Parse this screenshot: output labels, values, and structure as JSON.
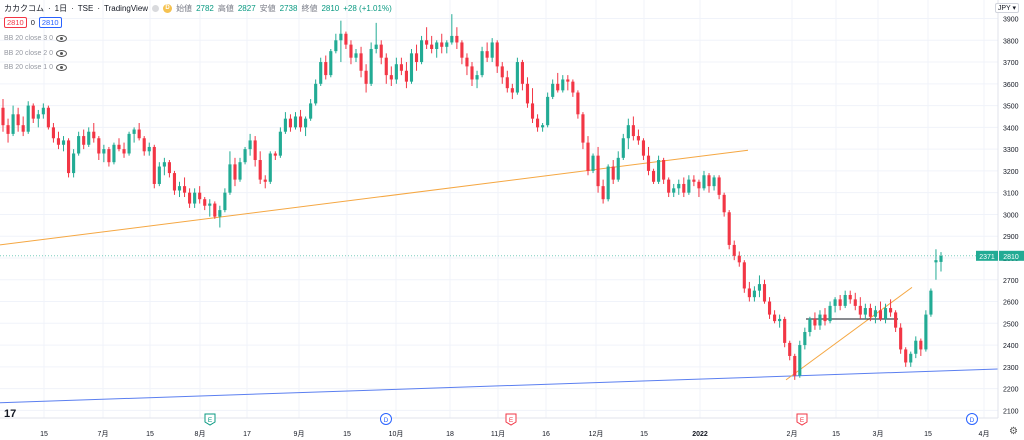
{
  "header": {
    "symbol": "カカクコム",
    "interval": "1日",
    "exchange": "TSE",
    "source": "TradingView",
    "open_label": "始値",
    "open": "2782",
    "high_label": "高値",
    "high": "2827",
    "low_label": "安値",
    "low": "2738",
    "close_label": "終値",
    "close": "2810",
    "change": "+28 (+1.01%)",
    "d_marker": "D"
  },
  "prices": {
    "sell": "2810",
    "spread": "0",
    "buy": "2810"
  },
  "indicators": [
    {
      "label": "BB 20 close 3 0"
    },
    {
      "label": "BB 20 close 2 0"
    },
    {
      "label": "BB 20 close 1 0"
    }
  ],
  "currency": "JPY ▾",
  "colors": {
    "up": "#22ab94",
    "down": "#f23645",
    "orange_trendline": "#f5a742",
    "blue_trendline": "#5b7ff0",
    "last_price_label": "#22ab94",
    "price_line": "#22ab94"
  },
  "chart_data": {
    "type": "candlestick",
    "y_ticks": [
      2100,
      2200,
      2300,
      2400,
      2500,
      2600,
      2700,
      2800,
      2900,
      3000,
      3100,
      3200,
      3300,
      3400,
      3500,
      3600,
      3700,
      3800,
      3900
    ],
    "ylim": [
      2065,
      3985
    ],
    "x_ticks": [
      "15",
      "7月",
      "15",
      "8月",
      "17",
      "9月",
      "15",
      "10月",
      "18",
      "11月",
      "16",
      "12月",
      "15",
      "2022",
      "2月",
      "15",
      "3月",
      "15",
      "4月"
    ],
    "last_price_labels": [
      "2371",
      "2810"
    ],
    "event_markers": [
      "E",
      "D",
      "E",
      "E",
      "D"
    ],
    "candles": [
      [
        3490,
        3530,
        3380,
        3410
      ],
      [
        3410,
        3440,
        3330,
        3370
      ],
      [
        3370,
        3500,
        3360,
        3460
      ],
      [
        3460,
        3490,
        3380,
        3410
      ],
      [
        3410,
        3450,
        3360,
        3380
      ],
      [
        3380,
        3520,
        3370,
        3500
      ],
      [
        3500,
        3510,
        3420,
        3440
      ],
      [
        3440,
        3480,
        3400,
        3460
      ],
      [
        3460,
        3510,
        3440,
        3490
      ],
      [
        3490,
        3500,
        3390,
        3400
      ],
      [
        3400,
        3420,
        3330,
        3350
      ],
      [
        3350,
        3380,
        3300,
        3320
      ],
      [
        3320,
        3360,
        3290,
        3340
      ],
      [
        3340,
        3350,
        3170,
        3190
      ],
      [
        3190,
        3300,
        3170,
        3280
      ],
      [
        3280,
        3380,
        3270,
        3360
      ],
      [
        3360,
        3390,
        3300,
        3320
      ],
      [
        3320,
        3400,
        3310,
        3380
      ],
      [
        3380,
        3420,
        3330,
        3350
      ],
      [
        3350,
        3360,
        3250,
        3280
      ],
      [
        3280,
        3320,
        3240,
        3300
      ],
      [
        3300,
        3310,
        3220,
        3240
      ],
      [
        3240,
        3330,
        3230,
        3320
      ],
      [
        3320,
        3350,
        3290,
        3300
      ],
      [
        3300,
        3330,
        3260,
        3280
      ],
      [
        3280,
        3380,
        3270,
        3370
      ],
      [
        3370,
        3400,
        3330,
        3390
      ],
      [
        3390,
        3420,
        3340,
        3350
      ],
      [
        3350,
        3360,
        3270,
        3290
      ],
      [
        3290,
        3330,
        3270,
        3310
      ],
      [
        3310,
        3320,
        3120,
        3140
      ],
      [
        3140,
        3240,
        3130,
        3220
      ],
      [
        3220,
        3260,
        3180,
        3240
      ],
      [
        3240,
        3250,
        3170,
        3190
      ],
      [
        3190,
        3200,
        3090,
        3110
      ],
      [
        3110,
        3150,
        3080,
        3130
      ],
      [
        3130,
        3170,
        3080,
        3100
      ],
      [
        3100,
        3120,
        3030,
        3050
      ],
      [
        3050,
        3120,
        3030,
        3100
      ],
      [
        3100,
        3130,
        3050,
        3070
      ],
      [
        3070,
        3080,
        3020,
        3040
      ],
      [
        3040,
        3070,
        2990,
        3050
      ],
      [
        3050,
        3060,
        2980,
        2990
      ],
      [
        2990,
        3040,
        2940,
        3020
      ],
      [
        3020,
        3120,
        3010,
        3100
      ],
      [
        3100,
        3290,
        3090,
        3230
      ],
      [
        3230,
        3260,
        3130,
        3160
      ],
      [
        3160,
        3260,
        3150,
        3240
      ],
      [
        3240,
        3310,
        3230,
        3300
      ],
      [
        3300,
        3370,
        3270,
        3340
      ],
      [
        3340,
        3360,
        3220,
        3250
      ],
      [
        3250,
        3290,
        3140,
        3160
      ],
      [
        3160,
        3180,
        3120,
        3150
      ],
      [
        3150,
        3290,
        3140,
        3280
      ],
      [
        3280,
        3290,
        3250,
        3270
      ],
      [
        3270,
        3400,
        3260,
        3380
      ],
      [
        3380,
        3470,
        3370,
        3440
      ],
      [
        3440,
        3460,
        3380,
        3400
      ],
      [
        3400,
        3470,
        3390,
        3450
      ],
      [
        3450,
        3480,
        3380,
        3400
      ],
      [
        3400,
        3450,
        3360,
        3440
      ],
      [
        3440,
        3530,
        3430,
        3510
      ],
      [
        3510,
        3620,
        3500,
        3600
      ],
      [
        3600,
        3720,
        3590,
        3700
      ],
      [
        3700,
        3730,
        3620,
        3640
      ],
      [
        3640,
        3760,
        3630,
        3750
      ],
      [
        3750,
        3830,
        3740,
        3800
      ],
      [
        3800,
        3890,
        3700,
        3830
      ],
      [
        3830,
        3840,
        3760,
        3780
      ],
      [
        3780,
        3800,
        3690,
        3720
      ],
      [
        3720,
        3760,
        3700,
        3740
      ],
      [
        3740,
        3770,
        3630,
        3660
      ],
      [
        3660,
        3690,
        3560,
        3600
      ],
      [
        3600,
        3790,
        3590,
        3760
      ],
      [
        3760,
        3880,
        3740,
        3780
      ],
      [
        3780,
        3800,
        3690,
        3720
      ],
      [
        3720,
        3740,
        3600,
        3640
      ],
      [
        3640,
        3680,
        3590,
        3620
      ],
      [
        3620,
        3720,
        3600,
        3690
      ],
      [
        3690,
        3720,
        3640,
        3660
      ],
      [
        3660,
        3700,
        3580,
        3610
      ],
      [
        3610,
        3760,
        3600,
        3740
      ],
      [
        3740,
        3780,
        3660,
        3700
      ],
      [
        3700,
        3820,
        3690,
        3800
      ],
      [
        3800,
        3860,
        3760,
        3780
      ],
      [
        3780,
        3820,
        3740,
        3760
      ],
      [
        3760,
        3800,
        3720,
        3790
      ],
      [
        3790,
        3830,
        3740,
        3770
      ],
      [
        3770,
        3800,
        3740,
        3790
      ],
      [
        3790,
        3920,
        3780,
        3820
      ],
      [
        3820,
        3860,
        3760,
        3790
      ],
      [
        3790,
        3800,
        3690,
        3720
      ],
      [
        3720,
        3740,
        3640,
        3680
      ],
      [
        3680,
        3700,
        3590,
        3620
      ],
      [
        3620,
        3660,
        3580,
        3640
      ],
      [
        3640,
        3770,
        3630,
        3750
      ],
      [
        3750,
        3790,
        3700,
        3720
      ],
      [
        3720,
        3810,
        3700,
        3790
      ],
      [
        3790,
        3800,
        3650,
        3680
      ],
      [
        3680,
        3700,
        3600,
        3630
      ],
      [
        3630,
        3660,
        3560,
        3580
      ],
      [
        3580,
        3600,
        3530,
        3560
      ],
      [
        3560,
        3720,
        3550,
        3700
      ],
      [
        3700,
        3710,
        3570,
        3600
      ],
      [
        3600,
        3630,
        3490,
        3510
      ],
      [
        3510,
        3580,
        3420,
        3440
      ],
      [
        3440,
        3460,
        3380,
        3400
      ],
      [
        3400,
        3420,
        3380,
        3410
      ],
      [
        3410,
        3560,
        3400,
        3540
      ],
      [
        3540,
        3620,
        3530,
        3600
      ],
      [
        3600,
        3650,
        3560,
        3570
      ],
      [
        3570,
        3640,
        3560,
        3620
      ],
      [
        3620,
        3640,
        3570,
        3610
      ],
      [
        3610,
        3620,
        3540,
        3560
      ],
      [
        3560,
        3570,
        3440,
        3460
      ],
      [
        3460,
        3470,
        3300,
        3330
      ],
      [
        3330,
        3360,
        3180,
        3200
      ],
      [
        3200,
        3280,
        3190,
        3270
      ],
      [
        3270,
        3310,
        3100,
        3130
      ],
      [
        3130,
        3160,
        3050,
        3070
      ],
      [
        3070,
        3230,
        3060,
        3220
      ],
      [
        3220,
        3250,
        3140,
        3160
      ],
      [
        3160,
        3290,
        3150,
        3260
      ],
      [
        3260,
        3370,
        3250,
        3350
      ],
      [
        3350,
        3440,
        3300,
        3410
      ],
      [
        3410,
        3450,
        3340,
        3360
      ],
      [
        3360,
        3390,
        3320,
        3340
      ],
      [
        3340,
        3350,
        3250,
        3270
      ],
      [
        3270,
        3310,
        3180,
        3200
      ],
      [
        3200,
        3210,
        3140,
        3150
      ],
      [
        3150,
        3270,
        3140,
        3250
      ],
      [
        3250,
        3260,
        3140,
        3160
      ],
      [
        3160,
        3170,
        3080,
        3100
      ],
      [
        3100,
        3140,
        3080,
        3120
      ],
      [
        3120,
        3160,
        3090,
        3140
      ],
      [
        3140,
        3170,
        3080,
        3100
      ],
      [
        3100,
        3180,
        3090,
        3160
      ],
      [
        3160,
        3180,
        3130,
        3150
      ],
      [
        3150,
        3160,
        3080,
        3120
      ],
      [
        3120,
        3200,
        3110,
        3180
      ],
      [
        3180,
        3190,
        3100,
        3130
      ],
      [
        3130,
        3180,
        3110,
        3170
      ],
      [
        3170,
        3180,
        3070,
        3090
      ],
      [
        3090,
        3100,
        2990,
        3010
      ],
      [
        3010,
        3020,
        2840,
        2860
      ],
      [
        2860,
        2880,
        2790,
        2810
      ],
      [
        2810,
        2830,
        2760,
        2780
      ],
      [
        2780,
        2790,
        2640,
        2660
      ],
      [
        2660,
        2690,
        2600,
        2620
      ],
      [
        2620,
        2670,
        2600,
        2650
      ],
      [
        2650,
        2720,
        2620,
        2680
      ],
      [
        2680,
        2700,
        2590,
        2600
      ],
      [
        2600,
        2620,
        2520,
        2540
      ],
      [
        2540,
        2560,
        2500,
        2510
      ],
      [
        2510,
        2540,
        2480,
        2520
      ],
      [
        2520,
        2530,
        2390,
        2410
      ],
      [
        2410,
        2420,
        2330,
        2350
      ],
      [
        2350,
        2360,
        2240,
        2260
      ],
      [
        2260,
        2420,
        2250,
        2400
      ],
      [
        2400,
        2480,
        2380,
        2460
      ],
      [
        2460,
        2530,
        2440,
        2520
      ],
      [
        2520,
        2550,
        2470,
        2490
      ],
      [
        2490,
        2560,
        2470,
        2540
      ],
      [
        2540,
        2570,
        2490,
        2510
      ],
      [
        2510,
        2600,
        2500,
        2580
      ],
      [
        2580,
        2620,
        2550,
        2610
      ],
      [
        2610,
        2630,
        2560,
        2580
      ],
      [
        2580,
        2650,
        2570,
        2630
      ],
      [
        2630,
        2650,
        2590,
        2610
      ],
      [
        2610,
        2640,
        2560,
        2580
      ],
      [
        2580,
        2620,
        2520,
        2540
      ],
      [
        2540,
        2590,
        2520,
        2570
      ],
      [
        2570,
        2590,
        2510,
        2530
      ],
      [
        2530,
        2580,
        2500,
        2560
      ],
      [
        2560,
        2600,
        2510,
        2520
      ],
      [
        2520,
        2590,
        2500,
        2570
      ],
      [
        2570,
        2610,
        2530,
        2550
      ],
      [
        2550,
        2560,
        2460,
        2480
      ],
      [
        2480,
        2500,
        2360,
        2380
      ],
      [
        2380,
        2390,
        2300,
        2320
      ],
      [
        2320,
        2370,
        2300,
        2360
      ],
      [
        2360,
        2440,
        2340,
        2420
      ],
      [
        2420,
        2430,
        2350,
        2380
      ],
      [
        2380,
        2560,
        2370,
        2540
      ],
      [
        2540,
        2660,
        2530,
        2650
      ],
      [
        2780,
        2840,
        2700,
        2790
      ],
      [
        2782,
        2827,
        2738,
        2810
      ]
    ]
  }
}
